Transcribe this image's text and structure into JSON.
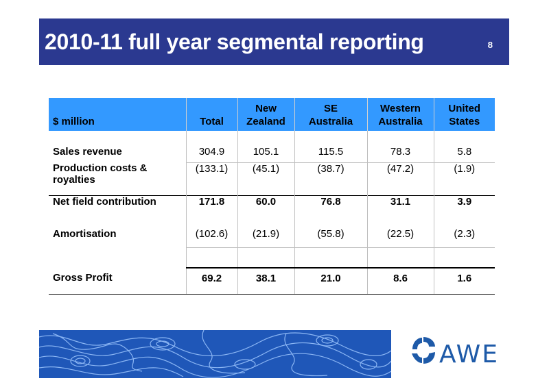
{
  "slide": {
    "title": "2010-11 full year segmental reporting",
    "page_number": "8"
  },
  "table": {
    "headers": [
      [
        "$ million"
      ],
      [
        "Total"
      ],
      [
        "New",
        "Zealand"
      ],
      [
        "SE",
        "Australia"
      ],
      [
        "Western",
        "Australia"
      ],
      [
        "United",
        "States"
      ]
    ],
    "rows": [
      {
        "label": [
          "Sales revenue"
        ],
        "values": [
          "304.9",
          "105.1",
          "115.5",
          "78.3",
          "5.8"
        ]
      },
      {
        "label": [
          "Production costs &",
          "royalties"
        ],
        "values": [
          "(133.1)",
          "(45.1)",
          "(38.7)",
          "(47.2)",
          "(1.9)"
        ]
      },
      {
        "label": [
          "Net field contribution"
        ],
        "values": [
          "171.8",
          "60.0",
          "76.8",
          "31.1",
          "3.9"
        ]
      },
      {
        "label": [
          "Amortisation"
        ],
        "values": [
          "(102.6)",
          "(21.9)",
          "(55.8)",
          "(22.5)",
          "(2.3)"
        ]
      },
      {
        "label": [
          "Gross Profit"
        ],
        "values": [
          "69.2",
          "38.1",
          "21.0",
          "8.6",
          "1.6"
        ]
      }
    ]
  },
  "logo": {
    "text": "AWE",
    "color": "#1e5aa8"
  },
  "colors": {
    "header_bar": "#2b3990",
    "table_header": "#3399ff",
    "footer_band": "#1f57b8"
  }
}
